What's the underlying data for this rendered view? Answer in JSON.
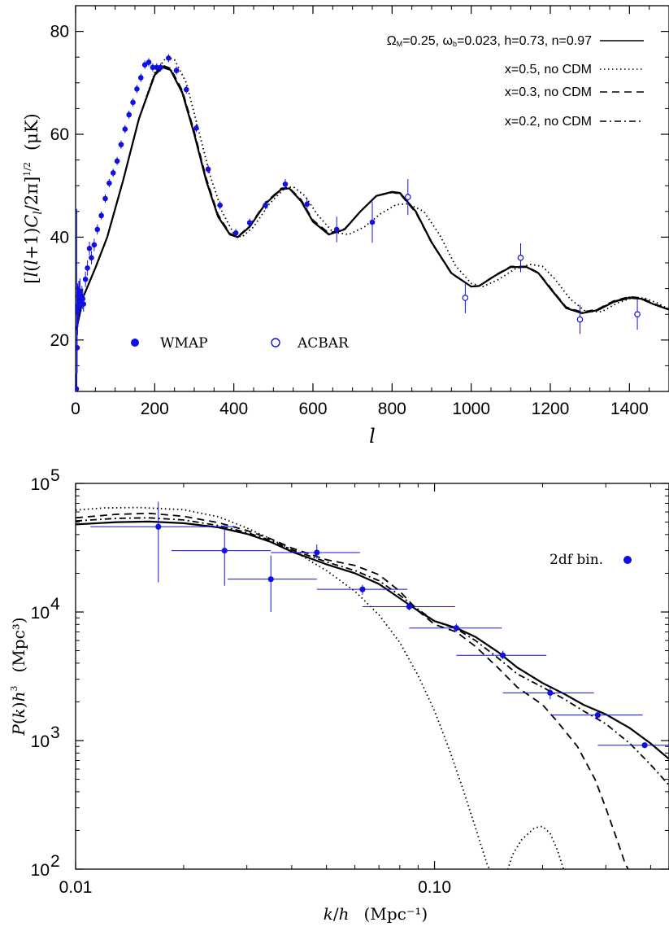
{
  "chart_data": [
    {
      "type": "line",
      "xlabel": "l",
      "ylabel": "[l(l+1)C_l/2π]^(1/2)   (μK)",
      "ylabel_parts": {
        "open": "[",
        "l1": "l",
        "mid": "(",
        "l2": "l",
        "plus": "+1)",
        "c": "C",
        "csub": "l",
        "slash": "/2π]",
        "sup": "1/2",
        "unit": "(μK)"
      },
      "xlim": [
        0,
        1500
      ],
      "ylim": [
        10,
        85
      ],
      "x_ticks": [
        0,
        200,
        400,
        600,
        800,
        1000,
        1200,
        1400
      ],
      "x_tick_labels": [
        "0",
        "200",
        "400",
        "600",
        "800",
        "1000",
        "1200",
        "1400"
      ],
      "y_ticks": [
        20,
        40,
        60,
        80
      ],
      "y_tick_labels": [
        "20",
        "40",
        "60",
        "80"
      ],
      "legend_position": "top-right",
      "legend": [
        {
          "label": "Ω_M=0.25, ω_b=0.023, h=0.73, n=0.97",
          "parts": {
            "O": "Ω",
            "Osub": "M",
            "a": "=0.25, ",
            "w": "ω",
            "wsub": "b",
            "b": "=0.023, h=0.73, n=0.97"
          },
          "style": "solid"
        },
        {
          "label": "x=0.5, no CDM",
          "style": "dotted"
        },
        {
          "label": "x=0.3, no CDM",
          "style": "dashed"
        },
        {
          "label": "x=0.2, no CDM",
          "style": "dashdot"
        }
      ],
      "series": [
        {
          "name": "Ω_M=0.25, ω_b=0.023, h=0.73, n=0.97",
          "style": "solid",
          "x": [
            2,
            20,
            50,
            80,
            120,
            160,
            200,
            220,
            240,
            270,
            300,
            330,
            360,
            390,
            410,
            440,
            480,
            520,
            540,
            570,
            600,
            640,
            680,
            720,
            760,
            800,
            820,
            860,
            900,
            950,
            1000,
            1020,
            1060,
            1100,
            1140,
            1170,
            1200,
            1240,
            1280,
            1320,
            1360,
            1400,
            1430,
            1460,
            1500
          ],
          "y": [
            22,
            28.5,
            34,
            40,
            51,
            63,
            71.5,
            73,
            72.5,
            68,
            60,
            51,
            44,
            40.5,
            40,
            42,
            46.5,
            49.3,
            49.5,
            47,
            43,
            40.5,
            41.5,
            45,
            48,
            48.8,
            48.6,
            45,
            39,
            33,
            30.4,
            30.5,
            32.5,
            34.2,
            34.2,
            33,
            30,
            26.2,
            25.2,
            25.8,
            27.4,
            28.2,
            28,
            27,
            25.9
          ]
        },
        {
          "name": "x=0.5, no CDM",
          "style": "dotted",
          "x": [
            2,
            20,
            50,
            80,
            120,
            160,
            200,
            230,
            250,
            280,
            310,
            340,
            370,
            400,
            420,
            450,
            490,
            530,
            550,
            580,
            610,
            650,
            690,
            730,
            770,
            810,
            840,
            880,
            920,
            960,
            1000,
            1030,
            1070,
            1110,
            1150,
            1180,
            1210,
            1250,
            1290,
            1330,
            1370,
            1410,
            1440,
            1470,
            1500
          ],
          "y": [
            22,
            28.5,
            34,
            40,
            51,
            63,
            72,
            75,
            74.5,
            70,
            61,
            52,
            45,
            40.6,
            40,
            42,
            46.5,
            49.6,
            49.8,
            48,
            44.5,
            41,
            40.5,
            42,
            44.5,
            46.3,
            46.5,
            45,
            40.5,
            34.5,
            31,
            30.4,
            31.8,
            33.8,
            34.7,
            34.3,
            32,
            28,
            25.5,
            25.5,
            27.2,
            28.3,
            28.1,
            27.2,
            26
          ]
        },
        {
          "name": "x=0.3, no CDM",
          "style": "dashed",
          "x": [
            2,
            20,
            50,
            80,
            120,
            160,
            200,
            220,
            240,
            270,
            300,
            330,
            360,
            390,
            410,
            440,
            480,
            520,
            540,
            570,
            600,
            640,
            680,
            720,
            760,
            800,
            820,
            860,
            900,
            950,
            1000,
            1020,
            1060,
            1100,
            1140,
            1170,
            1200,
            1240,
            1280,
            1320,
            1360,
            1400,
            1430,
            1460,
            1500
          ],
          "y": [
            22,
            28.5,
            34,
            40,
            51,
            63,
            71.8,
            73.4,
            72.8,
            68.5,
            60.5,
            51.5,
            44.4,
            40.7,
            40.1,
            42.2,
            46.7,
            49.5,
            49.6,
            47.3,
            43.3,
            40.8,
            41.6,
            45,
            48,
            48.7,
            48.4,
            44.8,
            38.9,
            32.9,
            30.4,
            30.5,
            32.6,
            34.3,
            34.3,
            33.1,
            30.2,
            26.4,
            25.4,
            26,
            27.6,
            28.4,
            28.2,
            27.1,
            26
          ]
        },
        {
          "name": "x=0.2, no CDM",
          "style": "dashdot",
          "x": [
            2,
            20,
            50,
            80,
            120,
            160,
            200,
            220,
            240,
            270,
            300,
            330,
            360,
            390,
            410,
            440,
            480,
            520,
            540,
            570,
            600,
            640,
            680,
            720,
            760,
            800,
            820,
            860,
            900,
            950,
            1000,
            1020,
            1060,
            1100,
            1140,
            1170,
            1200,
            1240,
            1280,
            1320,
            1360,
            1400,
            1430,
            1460,
            1500
          ],
          "y": [
            22,
            28.5,
            34,
            40,
            51,
            63,
            71.6,
            73.2,
            72.6,
            68.2,
            60.2,
            51.2,
            44.2,
            40.6,
            40,
            42.1,
            46.6,
            49.4,
            49.5,
            47.1,
            43.1,
            40.6,
            41.5,
            45,
            48,
            48.7,
            48.5,
            44.9,
            38.9,
            33,
            30.4,
            30.5,
            32.5,
            34.2,
            34.2,
            33,
            30.1,
            26.3,
            25.3,
            25.9,
            27.5,
            28.3,
            28.1,
            27,
            25.9
          ]
        }
      ],
      "points": [
        {
          "name": "WMAP",
          "marker": "filled-circle",
          "x": [
            2,
            3,
            4,
            5,
            6,
            7,
            8,
            9,
            10,
            11,
            12,
            14,
            16,
            18,
            20,
            25,
            30,
            35,
            40,
            47,
            55,
            65,
            75,
            85,
            95,
            105,
            115,
            125,
            135,
            145,
            155,
            165,
            175,
            185,
            195,
            205,
            215,
            235,
            255,
            280,
            305,
            335,
            365,
            405,
            440,
            480,
            530,
            585,
            660,
            750
          ],
          "y": [
            10.5,
            25.5,
            18.5,
            26,
            26.5,
            26.5,
            28.5,
            27.5,
            29,
            29.5,
            28,
            27.5,
            28.5,
            28,
            27,
            31.8,
            34,
            37.8,
            36,
            38.5,
            41.5,
            44.2,
            47.5,
            50.5,
            52.5,
            54.8,
            58,
            61,
            63.8,
            66.2,
            68.8,
            71,
            73.5,
            74,
            73,
            73,
            73,
            74.8,
            72.4,
            68.7,
            61.2,
            53.2,
            46.2,
            40.8,
            42.8,
            46.2,
            50.3,
            46.4,
            41.5,
            42.9
          ],
          "err": [
            3,
            20,
            5,
            5,
            4,
            3,
            3,
            2.5,
            2.5,
            2.5,
            2,
            2,
            2,
            2,
            1.5,
            1.5,
            1.5,
            1.3,
            1.3,
            1.2,
            1,
            0.8,
            0.8,
            0.8,
            0.8,
            0.8,
            0.8,
            0.8,
            0.8,
            0.8,
            0.8,
            0.8,
            0.8,
            0.8,
            0.8,
            0.8,
            0.8,
            0.8,
            0.8,
            0.8,
            0.8,
            0.8,
            0.8,
            0.8,
            0.8,
            0.8,
            1,
            1.2,
            2.5,
            4
          ]
        },
        {
          "name": "ACBAR",
          "marker": "open-circle",
          "x": [
            840,
            985,
            1125,
            1275,
            1420
          ],
          "y": [
            47.8,
            28.2,
            36,
            24,
            25
          ],
          "err": [
            3.5,
            3,
            2.8,
            2.8,
            3
          ]
        }
      ]
    },
    {
      "type": "line",
      "xscale": "log",
      "yscale": "log",
      "xlabel": "k/h   (Mpc⁻¹)",
      "xlabel_parts": {
        "k": "k",
        "slash": "/",
        "h": "h",
        "unit": "(Mpc⁻¹)"
      },
      "ylabel": "P(k)h³   (Mpc³)",
      "ylabel_parts": {
        "p": "P",
        "open": "(",
        "k": "k",
        "close": ")",
        "h": "h",
        "sup": "3",
        "unit": "(Mpc³)"
      },
      "xlim": [
        0.01,
        0.45
      ],
      "ylim": [
        100,
        100000
      ],
      "x_ticks": [
        0.01,
        0.1
      ],
      "x_tick_labels": [
        "0.01",
        "0.10"
      ],
      "y_ticks": [
        100,
        1000,
        10000,
        100000
      ],
      "y_tick_labels": [
        {
          "base": "10",
          "exp": "2"
        },
        {
          "base": "10",
          "exp": "3"
        },
        {
          "base": "10",
          "exp": "4"
        },
        {
          "base": "10",
          "exp": "5"
        }
      ],
      "legend_position": "top-right",
      "series": [
        {
          "name": "Ω_M=0.25, ω_b=0.023, h=0.73, n=0.97",
          "style": "solid",
          "x": [
            0.01,
            0.013,
            0.016,
            0.02,
            0.025,
            0.03,
            0.035,
            0.04,
            0.05,
            0.06,
            0.07,
            0.08,
            0.09,
            0.1,
            0.115,
            0.13,
            0.15,
            0.17,
            0.2,
            0.23,
            0.26,
            0.3,
            0.35,
            0.4,
            0.45
          ],
          "y": [
            48000,
            50000,
            50500,
            49000,
            45500,
            40500,
            35000,
            29500,
            23500,
            20000,
            16500,
            12800,
            10200,
            8500,
            7500,
            6400,
            4900,
            3700,
            2800,
            2300,
            1900,
            1600,
            1250,
            950,
            720
          ]
        },
        {
          "name": "x=0.5, no CDM",
          "style": "dotted",
          "x": [
            0.01,
            0.012,
            0.015,
            0.02,
            0.025,
            0.03,
            0.035,
            0.04,
            0.05,
            0.06,
            0.07,
            0.08,
            0.09,
            0.1,
            0.11,
            0.12,
            0.13,
            0.14,
            0.148,
            0.155,
            0.16,
            0.165,
            0.175,
            0.19,
            0.2,
            0.21,
            0.22,
            0.23
          ],
          "y": [
            62000,
            64500,
            65000,
            62500,
            55000,
            45000,
            37000,
            30500,
            21000,
            14500,
            9500,
            5800,
            3200,
            1700,
            850,
            420,
            210,
            110,
            80,
            80,
            100,
            130,
            170,
            210,
            215,
            190,
            140,
            95
          ]
        },
        {
          "name": "x=0.3, no CDM",
          "style": "dashed",
          "x": [
            0.01,
            0.013,
            0.016,
            0.02,
            0.025,
            0.03,
            0.035,
            0.04,
            0.05,
            0.06,
            0.07,
            0.08,
            0.09,
            0.1,
            0.115,
            0.13,
            0.15,
            0.17,
            0.2,
            0.22,
            0.25,
            0.28,
            0.3,
            0.32,
            0.34,
            0.35
          ],
          "y": [
            54000,
            57500,
            58500,
            55500,
            49500,
            43000,
            37000,
            31500,
            25500,
            23000,
            19500,
            14500,
            10200,
            8000,
            7000,
            5400,
            3700,
            2600,
            1900,
            1400,
            900,
            500,
            300,
            180,
            110,
            95
          ]
        },
        {
          "name": "x=0.2, no CDM",
          "style": "dashdot",
          "x": [
            0.01,
            0.013,
            0.016,
            0.02,
            0.025,
            0.03,
            0.035,
            0.04,
            0.05,
            0.06,
            0.07,
            0.08,
            0.09,
            0.1,
            0.115,
            0.13,
            0.15,
            0.17,
            0.2,
            0.23,
            0.26,
            0.3,
            0.35,
            0.4,
            0.45
          ],
          "y": [
            51000,
            53500,
            54000,
            52000,
            47000,
            41500,
            36000,
            30500,
            24500,
            21000,
            17500,
            13500,
            10500,
            8500,
            7400,
            6000,
            4400,
            3300,
            2600,
            2100,
            1700,
            1350,
            950,
            650,
            450
          ]
        }
      ],
      "points": [
        {
          "name": "2df bin.",
          "marker": "filled-circle",
          "x": [
            0.017,
            0.026,
            0.035,
            0.047,
            0.063,
            0.085,
            0.115,
            0.155,
            0.21,
            0.285,
            0.385
          ],
          "y": [
            46000,
            30000,
            18000,
            29000,
            15000,
            11000,
            7500,
            4600,
            2350,
            1580,
            920
          ],
          "xlo": [
            0.011,
            0.0185,
            0.0265,
            0.035,
            0.047,
            0.063,
            0.085,
            0.115,
            0.155,
            0.21,
            0.285
          ],
          "xhi": [
            0.028,
            0.035,
            0.047,
            0.062,
            0.084,
            0.114,
            0.154,
            0.205,
            0.278,
            0.38,
            0.45
          ],
          "ylo": [
            17000,
            16000,
            10000,
            26000,
            13600,
            10300,
            7000,
            4300,
            2100,
            1450,
            880
          ],
          "yhi": [
            72000,
            48000,
            27500,
            33500,
            16300,
            11700,
            8100,
            5000,
            2600,
            1720,
            960
          ]
        }
      ]
    }
  ]
}
